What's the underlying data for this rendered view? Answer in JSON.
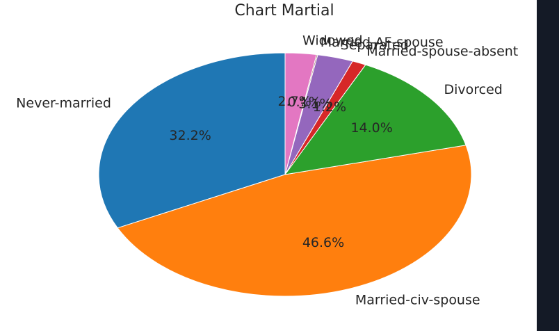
{
  "chart_data": {
    "type": "pie",
    "title": "Chart Martial",
    "categories": [
      "Never-married",
      "Married-civ-spouse",
      "Divorced",
      "Married-spouse-absent",
      "Separated",
      "Married-AF-spouse",
      "Widowed"
    ],
    "values": [
      32.2,
      46.6,
      14.0,
      1.2,
      3.1,
      0.1,
      2.7
    ],
    "pct_labels": [
      "32.2%",
      "46.6%",
      "14.0%",
      "1.2%",
      "3.1%",
      "0.1%",
      "2.7%"
    ],
    "colors": [
      "#1f77b4",
      "#ff7f0e",
      "#2ca02c",
      "#d62728",
      "#9467bd",
      "#8c564b",
      "#e377c2"
    ],
    "start_angle_deg": 90,
    "direction": "counterclockwise",
    "legend": "none"
  }
}
